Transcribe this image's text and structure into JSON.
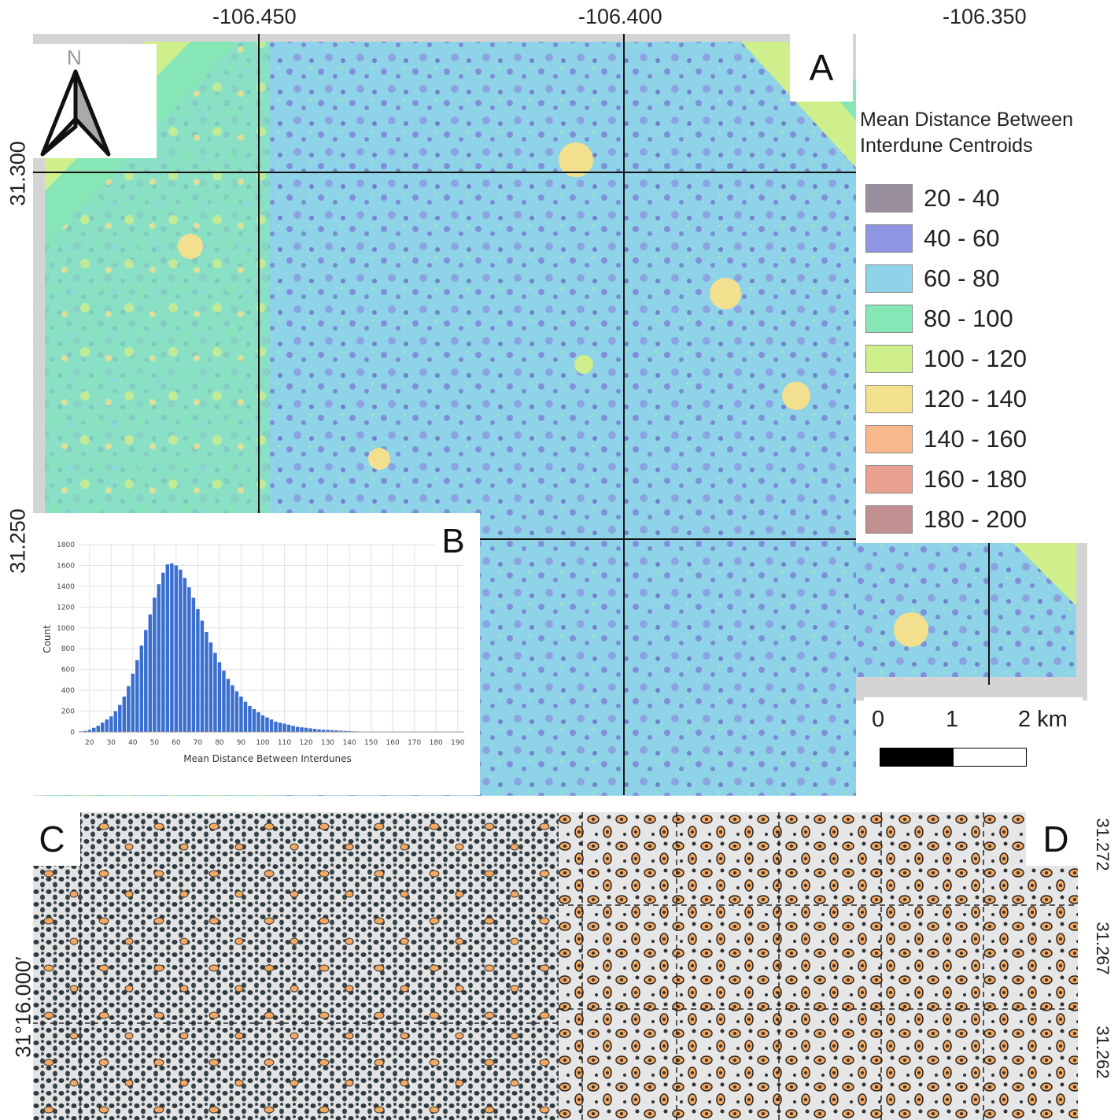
{
  "panels": {
    "a_label": "A",
    "b_label": "B",
    "c_label": "C",
    "d_label": "D"
  },
  "north_arrow": {
    "letter": "N",
    "icon": "north-arrow-icon"
  },
  "longitude_labels": [
    "-106.450",
    "-106.400",
    "-106.350"
  ],
  "latitude_labels": [
    "31.300",
    "31.250"
  ],
  "panel_c_label": "31°16.000′",
  "panel_d_labels": [
    "31.272",
    "31.267",
    "31.262"
  ],
  "legend": {
    "title_line1": "Mean Distance Between",
    "title_line2": "Interdune Centroids",
    "items": [
      {
        "label": "20 - 40",
        "color": "#9a8f9e"
      },
      {
        "label": "40 - 60",
        "color": "#8f95e0"
      },
      {
        "label": "60 - 80",
        "color": "#8fd3e8"
      },
      {
        "label": "80 - 100",
        "color": "#86e6b6"
      },
      {
        "label": "100 - 120",
        "color": "#cfee8c"
      },
      {
        "label": "120 - 140",
        "color": "#f3e08f"
      },
      {
        "label": "140 - 160",
        "color": "#f7b98c"
      },
      {
        "label": "160 - 180",
        "color": "#eaa08f"
      },
      {
        "label": "180 - 200",
        "color": "#c28f90"
      }
    ]
  },
  "scale_bar": {
    "labels": [
      "0",
      "1",
      "2 km"
    ]
  },
  "chart_data": {
    "type": "bar",
    "xlabel": "Mean Distance Between Interdunes",
    "ylabel": "Count",
    "ylim": [
      0,
      1800
    ],
    "yticks": [
      0,
      200,
      400,
      600,
      800,
      1000,
      1200,
      1400,
      1600,
      1800
    ],
    "xticks": [
      20,
      30,
      40,
      50,
      60,
      70,
      80,
      90,
      100,
      110,
      120,
      130,
      140,
      150,
      160,
      170,
      180,
      190
    ],
    "xlim": [
      15,
      193
    ],
    "bin_width": 2,
    "x": [
      16,
      18,
      20,
      22,
      24,
      26,
      28,
      30,
      32,
      34,
      36,
      38,
      40,
      42,
      44,
      46,
      48,
      50,
      52,
      54,
      56,
      58,
      60,
      62,
      64,
      66,
      68,
      70,
      72,
      74,
      76,
      78,
      80,
      82,
      84,
      86,
      88,
      90,
      92,
      94,
      96,
      98,
      100,
      102,
      104,
      106,
      108,
      110,
      112,
      114,
      116,
      118,
      120,
      122,
      124,
      126,
      128,
      130,
      132,
      134,
      136,
      138,
      140,
      142,
      144,
      146,
      148,
      150,
      152
    ],
    "values": [
      5,
      10,
      20,
      40,
      60,
      90,
      120,
      150,
      200,
      260,
      340,
      440,
      560,
      690,
      830,
      980,
      1130,
      1290,
      1420,
      1530,
      1610,
      1620,
      1600,
      1560,
      1480,
      1390,
      1290,
      1180,
      1070,
      960,
      860,
      760,
      670,
      590,
      510,
      450,
      390,
      340,
      290,
      250,
      220,
      190,
      160,
      140,
      120,
      100,
      90,
      80,
      70,
      60,
      50,
      45,
      40,
      35,
      30,
      25,
      22,
      20,
      18,
      15,
      12,
      10,
      8,
      6,
      5,
      4,
      3,
      2,
      1
    ]
  }
}
